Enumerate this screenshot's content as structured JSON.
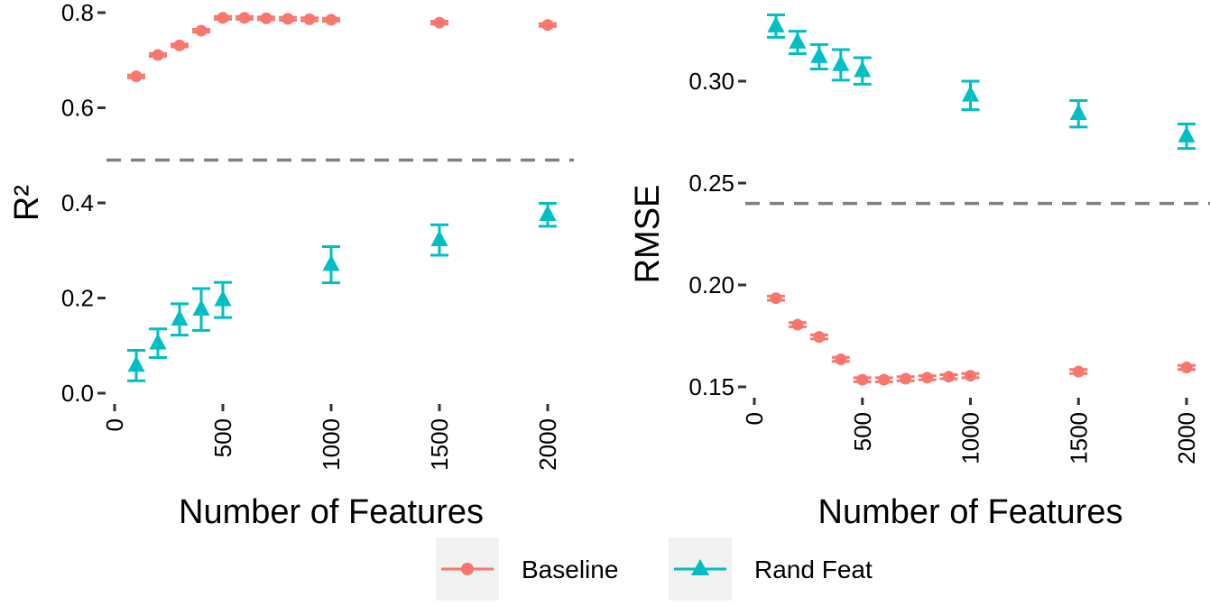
{
  "colors": {
    "baseline": "#F8766D",
    "rand_feat": "#00BFC4",
    "reference": "#808080",
    "legend_key_bg": "#F2F2F2"
  },
  "legend": {
    "position": "bottom",
    "items": [
      {
        "key": "baseline",
        "label": "Baseline",
        "shape": "circle"
      },
      {
        "key": "rand_feat",
        "label": "Rand Feat",
        "shape": "triangle"
      }
    ]
  },
  "chart_data": [
    {
      "type": "scatter",
      "ylabel": "R²",
      "xlabel": "Number of Features",
      "xlim": [
        0,
        2000
      ],
      "ylim": [
        0,
        0.8
      ],
      "x_ticks": [
        0,
        500,
        1000,
        1500,
        2000
      ],
      "x_tick_labels": [
        "0",
        "500",
        "1000",
        "1500",
        "2000"
      ],
      "y_ticks": [
        0,
        0.2,
        0.4,
        0.6,
        0.8
      ],
      "y_tick_labels": [
        "0.0",
        "0.2",
        "0.4",
        "0.6",
        "0.8"
      ],
      "reference_line": 0.49,
      "series": [
        {
          "name": "Baseline",
          "key": "baseline",
          "marker": "circle",
          "x": [
            100,
            200,
            300,
            400,
            500,
            600,
            700,
            800,
            900,
            1000,
            1500,
            2000
          ],
          "y": [
            0.666,
            0.711,
            0.731,
            0.762,
            0.789,
            0.789,
            0.788,
            0.787,
            0.786,
            0.785,
            0.779,
            0.774
          ],
          "y_err": [
            0.003,
            0.003,
            0.003,
            0.003,
            0.003,
            0.003,
            0.003,
            0.003,
            0.003,
            0.003,
            0.003,
            0.003
          ]
        },
        {
          "name": "Rand Feat",
          "key": "rand_feat",
          "marker": "triangle",
          "x": [
            100,
            200,
            300,
            400,
            500,
            1000,
            1500,
            2000
          ],
          "y": [
            0.058,
            0.105,
            0.155,
            0.176,
            0.196,
            0.27,
            0.322,
            0.375
          ],
          "y_err": [
            0.032,
            0.03,
            0.033,
            0.044,
            0.037,
            0.038,
            0.032,
            0.024
          ]
        }
      ]
    },
    {
      "type": "scatter",
      "ylabel": "RMSE",
      "xlabel": "Number of Features",
      "xlim": [
        0,
        2000
      ],
      "ylim": [
        0.1465,
        0.3365
      ],
      "x_ticks": [
        0,
        500,
        1000,
        1500,
        2000
      ],
      "x_tick_labels": [
        "0",
        "500",
        "1000",
        "1500",
        "2000"
      ],
      "y_ticks": [
        0.15,
        0.2,
        0.25,
        0.3
      ],
      "y_tick_labels": [
        "0.15",
        "0.20",
        "0.25",
        "0.30"
      ],
      "reference_line": 0.24,
      "series": [
        {
          "name": "Baseline",
          "key": "baseline",
          "marker": "circle",
          "x": [
            100,
            200,
            300,
            400,
            500,
            600,
            700,
            800,
            900,
            1000,
            1500,
            2000
          ],
          "y": [
            0.1935,
            0.1805,
            0.1745,
            0.1635,
            0.1535,
            0.1535,
            0.154,
            0.1545,
            0.155,
            0.1555,
            0.1575,
            0.1595
          ],
          "y_err": [
            0.001,
            0.001,
            0.001,
            0.001,
            0.001,
            0.001,
            0.001,
            0.001,
            0.001,
            0.001,
            0.001,
            0.001
          ]
        },
        {
          "name": "Rand Feat",
          "key": "rand_feat",
          "marker": "triangle",
          "x": [
            100,
            200,
            300,
            400,
            500,
            1000,
            1500,
            2000
          ],
          "y": [
            0.327,
            0.319,
            0.312,
            0.308,
            0.305,
            0.293,
            0.284,
            0.273
          ],
          "y_err": [
            0.0055,
            0.0055,
            0.006,
            0.0075,
            0.0065,
            0.007,
            0.0065,
            0.006
          ]
        }
      ]
    }
  ]
}
